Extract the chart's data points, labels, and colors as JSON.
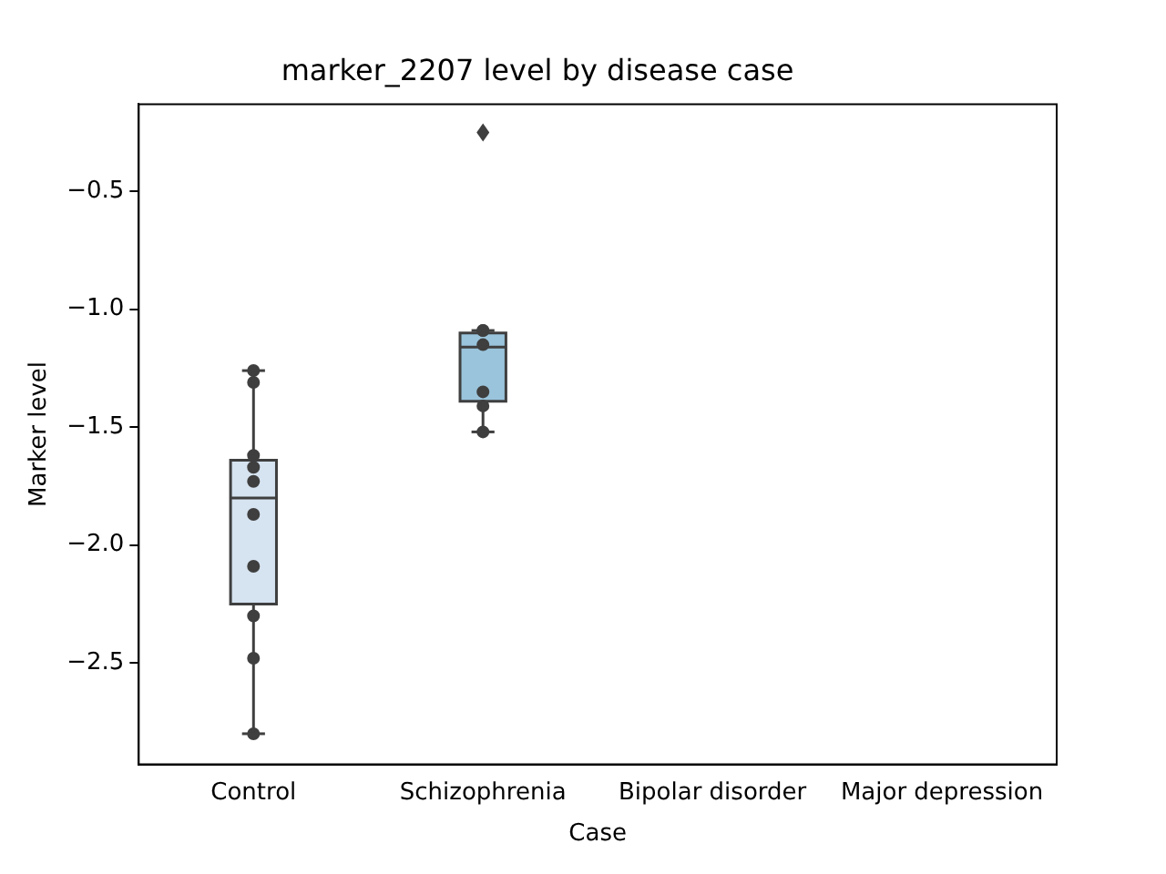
{
  "chart_data": {
    "type": "box",
    "title": "marker_2207 level by disease case",
    "xlabel": "Case",
    "ylabel": "Marker level",
    "categories": [
      "Control",
      "Schizophrenia",
      "Bipolar disorder",
      "Major depression"
    ],
    "ylim": [
      -2.93,
      -0.13
    ],
    "yticks": [
      -2.5,
      {
        "value": -2,
        "label": "−2.0"
      },
      -1.5,
      {
        "value": -1,
        "label": "−1.0"
      },
      -0.5
    ],
    "grid": false,
    "legend": false,
    "series": [
      {
        "colors": [
          "#d6e3f0",
          "#9ac4dc",
          null,
          null
        ],
        "boxes": [
          {
            "low": -2.8,
            "q1": -2.25,
            "median": -1.8,
            "q3": -1.64,
            "high": -1.26
          },
          {
            "low": -1.52,
            "q1": -1.39,
            "median": -1.16,
            "q3": -1.1,
            "high": -1.09,
            "outliers": [
              -0.25
            ]
          },
          null,
          null
        ]
      },
      {
        "type": "scatter",
        "color": "#3f3f3f",
        "marker": "circle",
        "x": [
          "Control",
          "Control",
          "Control",
          "Control",
          "Control",
          "Control",
          "Control",
          "Control",
          "Control",
          "Control",
          "Schizophrenia",
          "Schizophrenia",
          "Schizophrenia",
          "Schizophrenia",
          "Schizophrenia",
          "Schizophrenia"
        ],
        "values": [
          -1.26,
          -1.31,
          -1.62,
          -1.67,
          -1.73,
          -1.87,
          -2.09,
          -2.3,
          -2.48,
          -2.8,
          -1.09,
          -1.09,
          -1.15,
          -1.35,
          -1.41,
          -1.52
        ]
      }
    ]
  }
}
